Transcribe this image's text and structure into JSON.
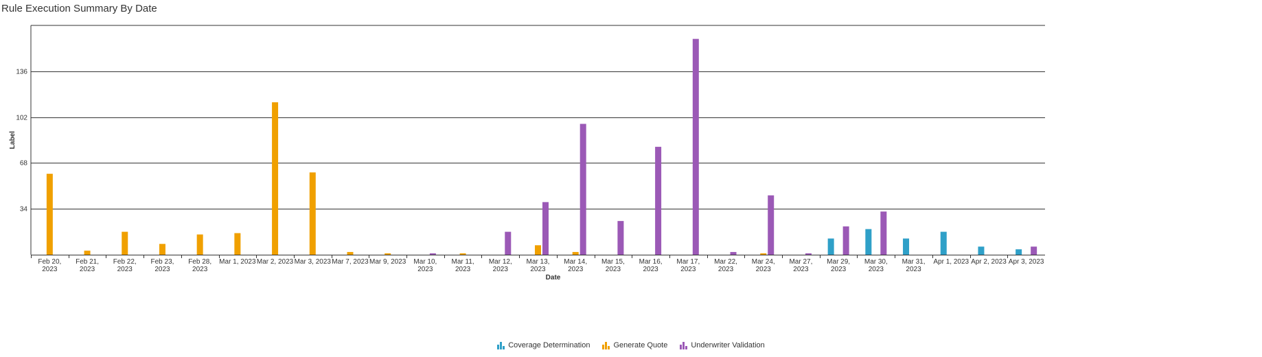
{
  "title": "Rule Execution Summary By Date",
  "chart_data": {
    "type": "bar",
    "title": "Rule Execution Summary By Date",
    "xlabel": "Date",
    "ylabel": "Label",
    "ylim": [
      0,
      170
    ],
    "yticks": [
      34,
      68,
      102,
      136
    ],
    "grid": true,
    "legend_position": "bottom",
    "categories": [
      [
        "Feb 20,",
        "2023"
      ],
      [
        "Feb 21,",
        "2023"
      ],
      [
        "Feb 22,",
        "2023"
      ],
      [
        "Feb 23,",
        "2023"
      ],
      [
        "Feb 28,",
        "2023"
      ],
      [
        "Mar 1, 2023"
      ],
      [
        "Mar 2, 2023"
      ],
      [
        "Mar 3, 2023"
      ],
      [
        "Mar 7, 2023"
      ],
      [
        "Mar 9, 2023"
      ],
      [
        "Mar 10,",
        "2023"
      ],
      [
        "Mar 11,",
        "2023"
      ],
      [
        "Mar 12,",
        "2023"
      ],
      [
        "Mar 13,",
        "2023"
      ],
      [
        "Mar 14,",
        "2023"
      ],
      [
        "Mar 15,",
        "2023"
      ],
      [
        "Mar 16,",
        "2023"
      ],
      [
        "Mar 17,",
        "2023"
      ],
      [
        "Mar 22,",
        "2023"
      ],
      [
        "Mar 24,",
        "2023"
      ],
      [
        "Mar 27,",
        "2023"
      ],
      [
        "Mar 29,",
        "2023"
      ],
      [
        "Mar 30,",
        "2023"
      ],
      [
        "Mar 31,",
        "2023"
      ],
      [
        "Apr 1, 2023"
      ],
      [
        "Apr 2, 2023"
      ],
      [
        "Apr 3, 2023"
      ]
    ],
    "series": [
      {
        "name": "Coverage Determination",
        "color": "#2fa0c8",
        "values": [
          0,
          0,
          0,
          0,
          0,
          0,
          0,
          0,
          0,
          0,
          0,
          0,
          0,
          0,
          0,
          0,
          0,
          0,
          0,
          0,
          0,
          12,
          19,
          12,
          17,
          6,
          4
        ]
      },
      {
        "name": "Generate Quote",
        "color": "#f0a000",
        "values": [
          60,
          3,
          17,
          8,
          15,
          16,
          113,
          61,
          2,
          1,
          0,
          1,
          0,
          7,
          2,
          0,
          0,
          0,
          0,
          1,
          0,
          0,
          0,
          0,
          0,
          0,
          0
        ]
      },
      {
        "name": "Underwriter Validation",
        "color": "#9b59b6",
        "values": [
          0,
          0,
          0,
          0,
          0,
          0,
          0,
          0,
          0,
          0,
          1,
          0,
          17,
          39,
          97,
          25,
          80,
          160,
          2,
          44,
          1,
          21,
          32,
          0,
          0,
          0,
          6
        ]
      }
    ]
  },
  "legend_icon": "bar-chart-icon"
}
